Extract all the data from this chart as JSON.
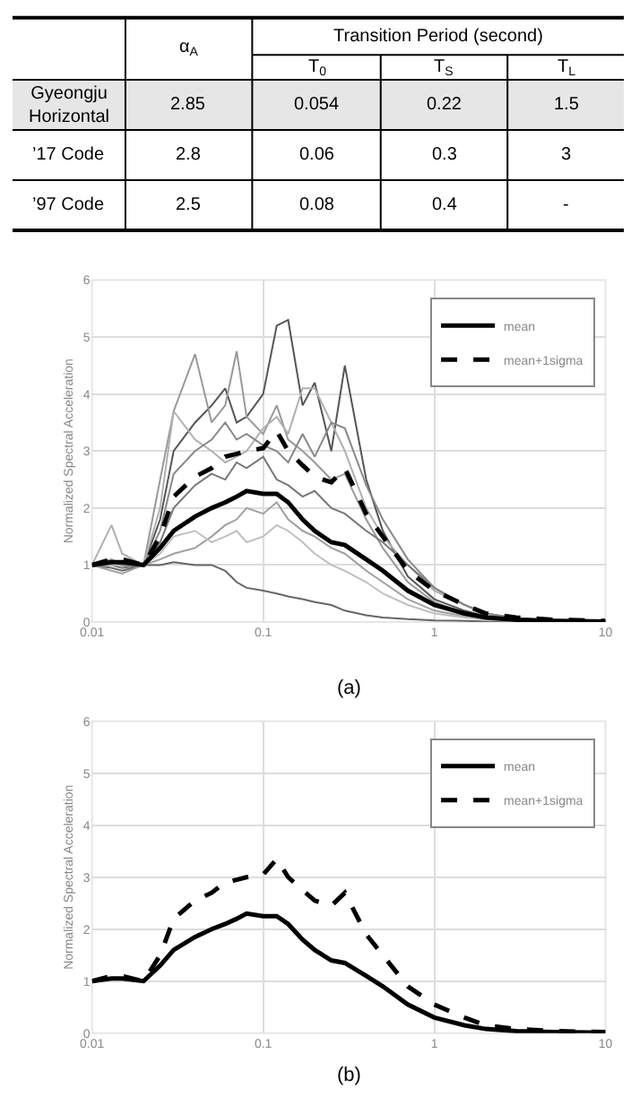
{
  "chart_data": [
    {
      "type": "other",
      "subtitle": "Transition Period (second)",
      "categories": [
        null,
        "α$_{A}$",
        "T$_{0}$",
        "T$_{S}$",
        "T$_{L}$"
      ],
      "y_categories": [
        "Gyeongju\nHorizontal",
        "’17 Code",
        "’97 Code"
      ],
      "cell_labels": [
        [
          "2.85",
          "0.054",
          "0.22",
          "1.5"
        ],
        [
          "2.8",
          "0.06",
          "0.3",
          "3"
        ],
        [
          "2.5",
          "0.08",
          "0.4",
          "-"
        ]
      ],
      "colors": [
        "#e6e6e6",
        "#ffffff",
        "#ffffff"
      ]
    },
    {
      "type": "line",
      "ylabel": "Normalized Spectral Acceleration",
      "annotations": [
        "(a)"
      ],
      "log": "x",
      "grid": true,
      "legend": "top right",
      "x": [
        0.01,
        0.013,
        0.015,
        0.02,
        0.025,
        0.03,
        0.04,
        0.05,
        0.06,
        0.07,
        0.08,
        0.1,
        0.12,
        0.14,
        0.17,
        0.2,
        0.25,
        0.3,
        0.4,
        0.5,
        0.7,
        1,
        1.5,
        2,
        3,
        5,
        10
      ],
      "xlim": [
        0.01,
        10
      ],
      "xticks": [
        0.01,
        0.1,
        1,
        10
      ],
      "ylim": [
        0,
        6
      ],
      "yticks": [
        0,
        1,
        2,
        3,
        4,
        5,
        6
      ],
      "series": [
        {
          "color": "#555555",
          "values": [
            1,
            1.05,
            1.0,
            1.0,
            1.8,
            3.0,
            3.5,
            3.8,
            4.1,
            3.5,
            3.6,
            4.0,
            5.2,
            5.3,
            3.8,
            4.2,
            3.0,
            4.5,
            2.5,
            1.6,
            0.8,
            0.4,
            0.2,
            0.1,
            0.05,
            0.02,
            0.01
          ]
        },
        {
          "color": "#999999",
          "values": [
            1,
            1.1,
            1.0,
            1.0,
            2.5,
            3.7,
            4.7,
            3.5,
            3.8,
            4.75,
            3.6,
            3.3,
            3.8,
            3.2,
            3.0,
            2.8,
            2.5,
            2.6,
            1.8,
            1.3,
            0.7,
            0.35,
            0.15,
            0.08,
            0.04,
            0.02,
            0.01
          ]
        },
        {
          "color": "#b0b0b0",
          "values": [
            1,
            1.7,
            1.2,
            1.0,
            2.0,
            3.7,
            3.2,
            3.0,
            2.8,
            2.9,
            3.0,
            3.4,
            3.6,
            3.3,
            4.1,
            4.1,
            3.5,
            3.0,
            2.0,
            1.5,
            1.0,
            0.55,
            0.3,
            0.15,
            0.06,
            0.03,
            0.01
          ]
        },
        {
          "color": "#666666",
          "values": [
            1,
            0.95,
            0.9,
            1.0,
            1.0,
            1.05,
            1.0,
            1.0,
            0.9,
            0.7,
            0.6,
            0.55,
            0.5,
            0.45,
            0.4,
            0.35,
            0.3,
            0.2,
            0.12,
            0.08,
            0.05,
            0.03,
            0.02,
            0.01,
            0.01,
            0,
            0
          ]
        },
        {
          "color": "#a0a0a0",
          "values": [
            1,
            0.9,
            0.85,
            1.0,
            1.1,
            1.2,
            1.3,
            1.5,
            1.7,
            1.8,
            2.0,
            1.9,
            2.1,
            1.8,
            1.6,
            1.5,
            1.3,
            1.2,
            0.9,
            0.7,
            0.4,
            0.2,
            0.1,
            0.05,
            0.02,
            0.01,
            0
          ]
        },
        {
          "color": "#777777",
          "values": [
            1,
            1.0,
            0.95,
            1.0,
            1.4,
            2.0,
            2.4,
            2.6,
            2.5,
            2.8,
            2.7,
            2.9,
            2.5,
            2.4,
            2.2,
            2.3,
            2.0,
            1.9,
            1.6,
            1.4,
            1.0,
            0.6,
            0.3,
            0.15,
            0.06,
            0.02,
            0.01
          ]
        },
        {
          "color": "#c0c0c0",
          "values": [
            1,
            1.0,
            1.0,
            1.0,
            1.2,
            1.5,
            1.6,
            1.4,
            1.5,
            1.6,
            1.4,
            1.5,
            1.7,
            1.6,
            1.4,
            1.2,
            1.0,
            0.9,
            0.7,
            0.5,
            0.3,
            0.15,
            0.08,
            0.04,
            0.02,
            0.01,
            0
          ]
        },
        {
          "color": "#888888",
          "values": [
            1,
            1.05,
            1.0,
            1.0,
            1.6,
            2.6,
            3.0,
            3.2,
            3.5,
            3.2,
            3.3,
            3.1,
            3.0,
            2.8,
            3.3,
            2.9,
            3.5,
            3.4,
            2.4,
            1.8,
            1.1,
            0.6,
            0.3,
            0.15,
            0.07,
            0.03,
            0.01
          ]
        },
        {
          "name": "mean",
          "color": "#000000",
          "line_style": "solid",
          "values": [
            1.0,
            1.05,
            1.05,
            1.0,
            1.3,
            1.6,
            1.85,
            2.0,
            2.1,
            2.2,
            2.3,
            2.25,
            2.25,
            2.1,
            1.8,
            1.6,
            1.4,
            1.35,
            1.1,
            0.9,
            0.55,
            0.3,
            0.15,
            0.08,
            0.04,
            0.02,
            0.01
          ]
        },
        {
          "name": "mean+1sigma",
          "color": "#000000",
          "line_style": "dashed",
          "values": [
            1.0,
            1.1,
            1.1,
            1.0,
            1.5,
            2.2,
            2.55,
            2.7,
            2.9,
            2.95,
            3.0,
            3.05,
            3.35,
            3.0,
            2.75,
            2.55,
            2.45,
            2.7,
            1.9,
            1.5,
            0.9,
            0.55,
            0.3,
            0.15,
            0.08,
            0.04,
            0.02
          ]
        }
      ]
    },
    {
      "type": "line",
      "ylabel": "Normalized Spectral Acceleration",
      "annotations": [
        "(b)"
      ],
      "log": "x",
      "grid": true,
      "legend": "top right",
      "x": [
        0.01,
        0.013,
        0.015,
        0.02,
        0.025,
        0.03,
        0.04,
        0.05,
        0.06,
        0.07,
        0.08,
        0.1,
        0.12,
        0.14,
        0.17,
        0.2,
        0.25,
        0.3,
        0.4,
        0.5,
        0.7,
        1,
        1.5,
        2,
        3,
        5,
        10
      ],
      "xlim": [
        0.01,
        10
      ],
      "xticks": [
        0.01,
        0.1,
        1,
        10
      ],
      "ylim": [
        0,
        6
      ],
      "yticks": [
        0,
        1,
        2,
        3,
        4,
        5,
        6
      ],
      "series": [
        {
          "name": "mean",
          "color": "#000000",
          "line_style": "solid",
          "values": [
            1.0,
            1.05,
            1.05,
            1.0,
            1.3,
            1.6,
            1.85,
            2.0,
            2.1,
            2.2,
            2.3,
            2.25,
            2.25,
            2.1,
            1.8,
            1.6,
            1.4,
            1.35,
            1.1,
            0.9,
            0.55,
            0.3,
            0.15,
            0.08,
            0.04,
            0.02,
            0.01
          ]
        },
        {
          "name": "mean+1sigma",
          "color": "#000000",
          "line_style": "dashed",
          "values": [
            1.0,
            1.1,
            1.1,
            1.0,
            1.5,
            2.2,
            2.55,
            2.7,
            2.9,
            2.95,
            3.0,
            3.05,
            3.35,
            3.0,
            2.75,
            2.55,
            2.45,
            2.7,
            1.9,
            1.5,
            0.9,
            0.55,
            0.3,
            0.15,
            0.08,
            0.04,
            0.02
          ]
        }
      ]
    }
  ]
}
